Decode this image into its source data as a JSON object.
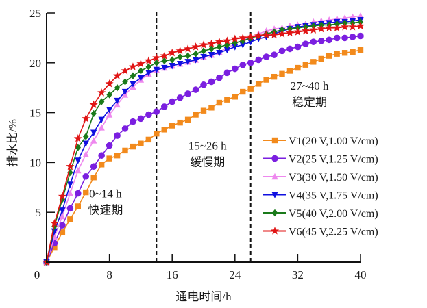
{
  "chart_data": {
    "type": "line",
    "title": "",
    "xlabel": "通电时间/h",
    "ylabel": "排水比/%",
    "xlim": [
      0,
      40
    ],
    "ylim": [
      0,
      25
    ],
    "xticks": [
      0,
      8,
      16,
      24,
      32,
      40
    ],
    "yticks": [
      5,
      10,
      15,
      20,
      25
    ],
    "xtick_labels": [
      "0",
      "8",
      "16",
      "24",
      "32",
      "40"
    ],
    "ytick_labels": [
      "5",
      "10",
      "15",
      "20",
      "25"
    ],
    "grid": false,
    "legend_position": "center-right",
    "vertical_lines": [
      {
        "x": 14,
        "style": "dashed"
      },
      {
        "x": 26,
        "style": "dashed"
      }
    ],
    "annotations": [
      {
        "line1": "0~14 h",
        "line2": "快速期",
        "x": 7.5,
        "y": 6.5
      },
      {
        "line1": "15~26 h",
        "line2": "缓慢期",
        "x": 20.5,
        "y": 11.3
      },
      {
        "line1": "27~40 h",
        "line2": "稳定期",
        "x": 33.5,
        "y": 17.3
      }
    ],
    "x": [
      0,
      1,
      2,
      3,
      4,
      5,
      6,
      7,
      8,
      9,
      10,
      11,
      12,
      13,
      14,
      15,
      16,
      17,
      18,
      19,
      20,
      21,
      22,
      23,
      24,
      25,
      26,
      27,
      28,
      29,
      30,
      31,
      32,
      33,
      34,
      35,
      36,
      37,
      38,
      39,
      40
    ],
    "series": [
      {
        "name": "V1(20 V,1.00 V/cm)",
        "color": "#f28a1c",
        "marker": "square",
        "values": [
          0,
          1.5,
          3.0,
          4.3,
          5.6,
          7.0,
          8.5,
          9.8,
          10.4,
          10.7,
          11.2,
          11.6,
          11.9,
          12.3,
          12.9,
          13.3,
          13.7,
          14.0,
          14.3,
          14.8,
          15.2,
          15.5,
          16.0,
          16.3,
          16.6,
          17.1,
          17.4,
          17.9,
          18.3,
          18.6,
          18.9,
          19.2,
          19.5,
          19.8,
          20.1,
          20.4,
          20.7,
          20.9,
          21.0,
          21.1,
          21.3
        ]
      },
      {
        "name": "V2(25 V,1.25 V/cm)",
        "color": "#7b1fe0",
        "marker": "circle",
        "values": [
          0,
          1.9,
          3.7,
          5.4,
          6.9,
          8.6,
          9.6,
          10.7,
          11.7,
          12.7,
          13.4,
          14.1,
          14.4,
          14.8,
          15.1,
          15.6,
          16.1,
          16.5,
          16.9,
          17.3,
          17.8,
          18.1,
          18.5,
          19.0,
          19.4,
          19.8,
          20.0,
          20.3,
          20.6,
          20.8,
          21.2,
          21.4,
          21.6,
          21.9,
          22.1,
          22.2,
          22.3,
          22.5,
          22.5,
          22.6,
          22.7
        ]
      },
      {
        "name": "V3(30 V,1.50 V/cm)",
        "color": "#ee88ee",
        "marker": "triangle-up",
        "values": [
          0,
          2.5,
          4.6,
          6.9,
          9.2,
          10.8,
          12.2,
          13.5,
          14.8,
          15.8,
          16.8,
          17.6,
          18.3,
          18.9,
          19.3,
          19.5,
          19.7,
          19.9,
          20.1,
          20.3,
          20.6,
          20.8,
          21.1,
          21.5,
          21.9,
          22.3,
          22.6,
          22.9,
          23.2,
          23.4,
          23.5,
          23.7,
          23.8,
          23.9,
          24.1,
          24.2,
          24.3,
          24.4,
          24.5,
          24.6,
          24.7
        ]
      },
      {
        "name": "V4(35 V,1.75 V/cm)",
        "color": "#1010e0",
        "marker": "triangle-down",
        "values": [
          0,
          3.1,
          5.2,
          7.8,
          10.2,
          11.9,
          13.0,
          14.3,
          15.3,
          16.2,
          17.1,
          17.9,
          18.5,
          19.0,
          19.3,
          19.5,
          19.7,
          19.9,
          20.1,
          20.3,
          20.6,
          20.8,
          21.0,
          21.3,
          21.6,
          21.8,
          22.1,
          22.4,
          22.6,
          22.9,
          23.2,
          23.4,
          23.6,
          23.7,
          23.8,
          23.9,
          24.0,
          24.1,
          24.1,
          24.2,
          24.3
        ]
      },
      {
        "name": "V5(40 V,2.00 V/cm)",
        "color": "#1a7a1a",
        "marker": "diamond",
        "values": [
          0,
          3.6,
          6.3,
          9.0,
          11.5,
          12.6,
          14.9,
          16.1,
          16.8,
          17.5,
          18.1,
          18.7,
          19.2,
          19.6,
          20.0,
          20.2,
          20.3,
          20.6,
          20.7,
          20.9,
          21.2,
          21.4,
          21.6,
          21.8,
          22.0,
          22.2,
          22.5,
          22.7,
          22.9,
          23.1,
          23.3,
          23.4,
          23.5,
          23.6,
          23.7,
          23.8,
          23.8,
          23.9,
          24.0,
          24.0,
          24.1
        ]
      },
      {
        "name": "V6(45 V,2.25 V/cm)",
        "color": "#e01414",
        "marker": "star",
        "values": [
          0,
          3.9,
          6.6,
          9.6,
          12.4,
          14.4,
          15.8,
          17.0,
          17.9,
          18.7,
          19.2,
          19.6,
          19.9,
          20.2,
          20.5,
          20.7,
          21.0,
          21.2,
          21.4,
          21.6,
          21.8,
          21.9,
          22.1,
          22.2,
          22.4,
          22.5,
          22.6,
          22.7,
          22.8,
          22.8,
          22.9,
          23.0,
          23.1,
          23.2,
          23.3,
          23.4,
          23.5,
          23.5,
          23.6,
          23.6,
          23.7
        ]
      }
    ]
  }
}
